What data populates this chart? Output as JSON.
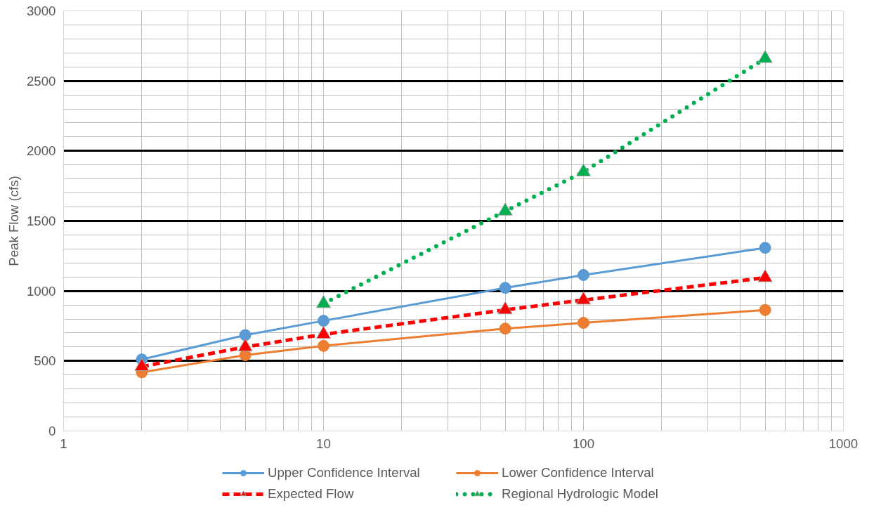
{
  "chart_data": {
    "type": "line",
    "ylabel": "Peak Flow (cfs)",
    "log": "x",
    "x": [
      2,
      5,
      10,
      50,
      100,
      500
    ],
    "series": [
      {
        "name": "Upper Confidence Interval",
        "color": "#5b9bd5",
        "marker": "circle",
        "line_style": "solid",
        "values": [
          511,
          685,
          787,
          1022,
          1114,
          1308
        ]
      },
      {
        "name": "Lower Confidence Interval",
        "color": "#ed7d31",
        "marker": "circle",
        "line_style": "solid",
        "values": [
          419,
          542,
          608,
          731,
          772,
          864
        ]
      },
      {
        "name": "Expected Flow",
        "color": "#ff0000",
        "marker": "triangle",
        "line_style": "dashed",
        "values": [
          460,
          600,
          690,
          865,
          935,
          1095
        ]
      },
      {
        "name": "Regional Hydrologic Model",
        "color": "#00b050",
        "marker": "triangle",
        "line_style": "dotted",
        "x": [
          10,
          50,
          100,
          500
        ],
        "values": [
          910,
          1570,
          1850,
          2660
        ]
      }
    ],
    "xlim": [
      1,
      1000
    ],
    "xticks": [
      1,
      10,
      100,
      1000
    ],
    "ylim": [
      0,
      3000
    ],
    "yticks": [
      0,
      500,
      1000,
      1500,
      2000,
      2500,
      3000
    ],
    "grid": true,
    "legend": "bottom"
  }
}
